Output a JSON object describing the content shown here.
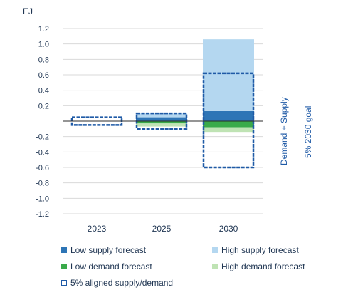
{
  "chart_data": {
    "type": "bar",
    "ylabel": "EJ",
    "ylim": [
      -1.2,
      1.2
    ],
    "yticks": [
      1.2,
      1.0,
      0.8,
      0.6,
      0.4,
      0.2,
      -0.2,
      -0.4,
      -0.6,
      -0.8,
      -1.0,
      -1.2
    ],
    "categories": [
      "2023",
      "2025",
      "2030"
    ],
    "grid": true,
    "legend_position": "bottom",
    "series": [
      {
        "name": "Low supply forecast",
        "color": "#2e75b6",
        "values": [
          0,
          0.05,
          0.13
        ]
      },
      {
        "name": "High supply forecast",
        "color": "#b4d7f0",
        "values": [
          0,
          0.05,
          0.93
        ]
      },
      {
        "name": "Low demand forecast",
        "color": "#3aaa4a",
        "values": [
          0,
          -0.03,
          -0.08
        ]
      },
      {
        "name": "High demand forecast",
        "color": "#bfe3b4",
        "values": [
          0,
          -0.04,
          -0.06
        ]
      },
      {
        "name": "5% aligned supply/demand",
        "color": "#1f5aa6",
        "outline": true,
        "ranges": [
          [
            -0.05,
            0.05
          ],
          [
            -0.1,
            0.1
          ],
          [
            -0.6,
            0.62
          ]
        ]
      }
    ],
    "annotations": [
      "Demand + Supply",
      "5% 2030 goal"
    ]
  }
}
